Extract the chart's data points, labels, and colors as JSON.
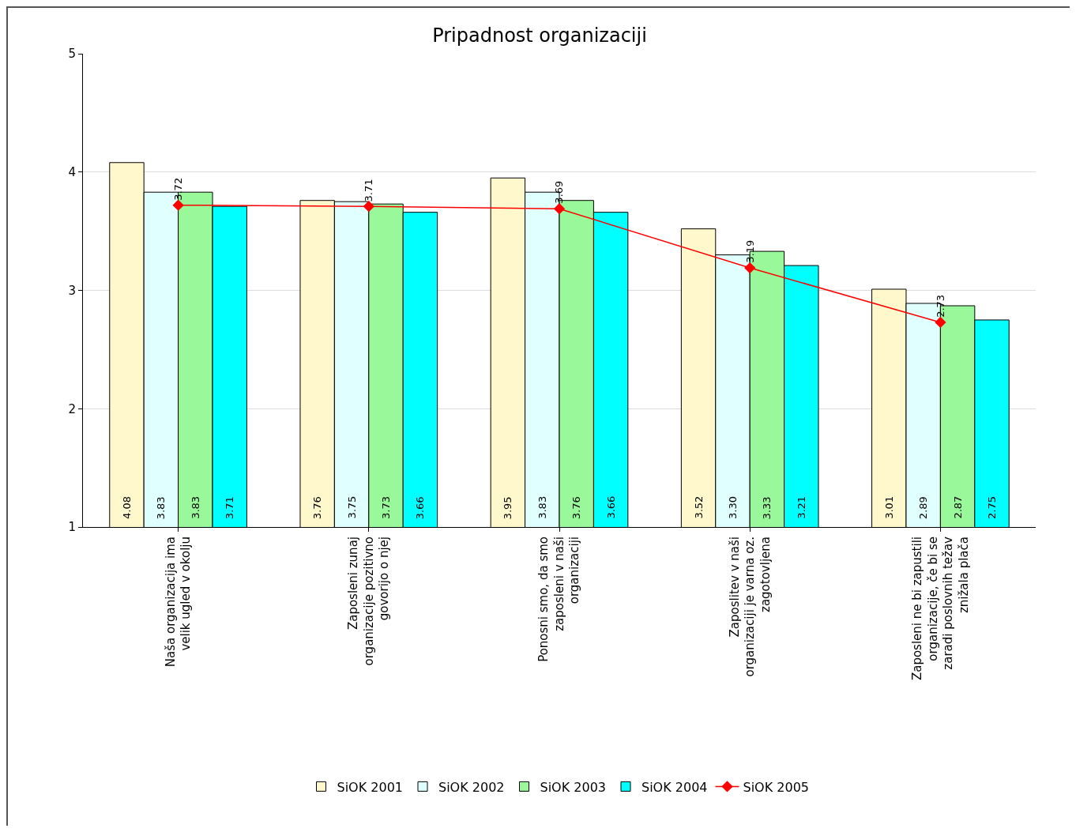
{
  "chart_data": {
    "type": "bar",
    "title": "Pripadnost organizaciji",
    "categories": [
      "Naša organizacija ima velik ugled v okolju",
      "Zaposleni zunaj organizacije pozitivno govorijo o njej",
      "Ponosni smo, da smo zaposleni v naši organizaciji",
      "Zaposlitev v naši organizaciji je varna oz. zagotovljena",
      "Zaposleni ne bi zapustili organizacije, če bi se zaradi poslovnih težav znižala plača"
    ],
    "series": [
      {
        "name": "SiOK 2001",
        "color": "#fff8cc",
        "values": [
          4.08,
          3.76,
          3.95,
          3.52,
          3.01
        ],
        "value_labels": [
          "4.08",
          "3.76",
          "3.95",
          "3.52",
          "3.01"
        ]
      },
      {
        "name": "SiOK 2002",
        "color": "#e0ffff",
        "values": [
          3.83,
          3.75,
          3.83,
          3.3,
          2.89
        ],
        "value_labels": [
          "3.83",
          "3.75",
          "3.83",
          "3.30",
          "2.89"
        ]
      },
      {
        "name": "SiOK 2003",
        "color": "#99f899",
        "values": [
          3.83,
          3.73,
          3.76,
          3.33,
          2.87
        ],
        "value_labels": [
          "3.83",
          "3.73",
          "3.76",
          "3.33",
          "2.87"
        ]
      },
      {
        "name": "SiOK 2004",
        "color": "#00ffff",
        "values": [
          3.71,
          3.66,
          3.66,
          3.21,
          2.75
        ],
        "value_labels": [
          "3.71",
          "3.66",
          "3.66",
          "3.21",
          "2.75"
        ]
      },
      {
        "name": "SiOK 2005",
        "type": "line",
        "color": "#ff0000",
        "marker": "diamond",
        "values": [
          3.72,
          3.71,
          3.69,
          3.19,
          2.73
        ],
        "value_labels": [
          "3.72",
          "3.71",
          "3.69",
          "3.19",
          "2.73"
        ]
      }
    ],
    "ylim": [
      1,
      5
    ],
    "yticks": [
      1,
      2,
      3,
      4,
      5
    ],
    "grid": "y",
    "legend": "bottom"
  }
}
